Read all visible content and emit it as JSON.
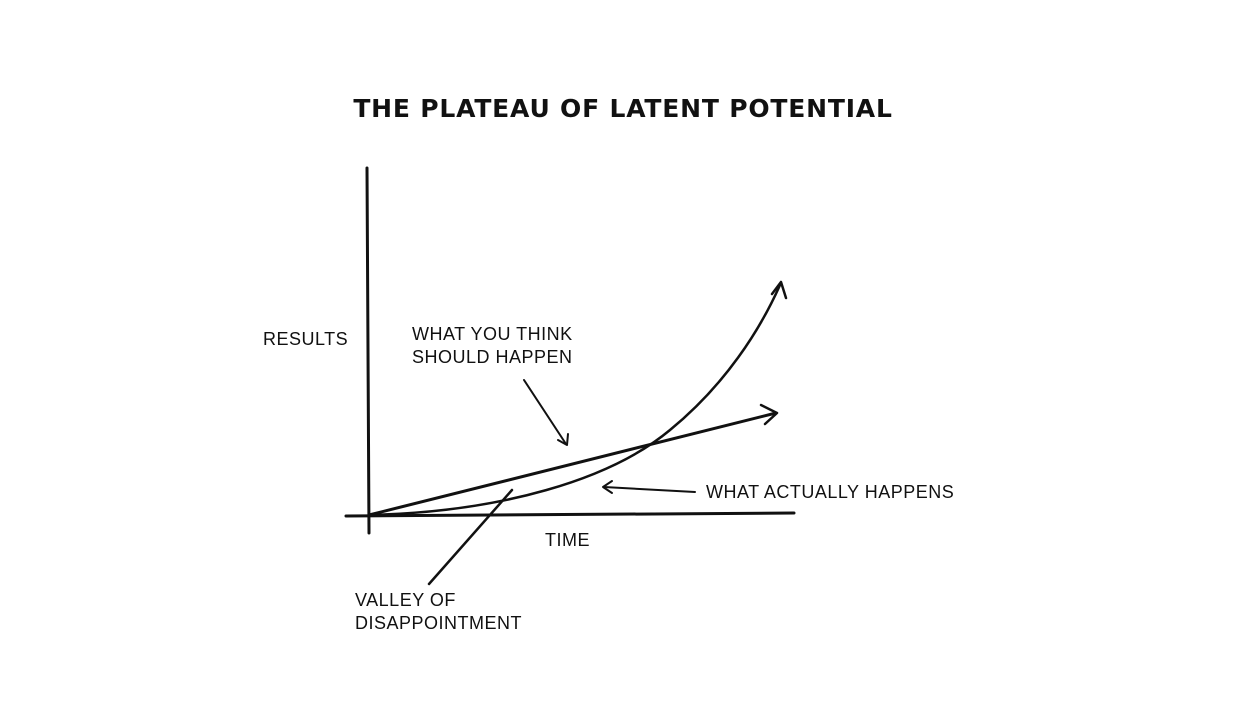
{
  "title": "THE PLATEAU OF LATENT POTENTIAL",
  "axes": {
    "y_label": "RESULTS",
    "x_label": "TIME"
  },
  "annotations": {
    "expected": [
      "WHAT YOU THINK",
      "SHOULD HAPPEN"
    ],
    "actual": "WHAT ACTUALLY HAPPENS",
    "valley": [
      "VALLEY OF",
      "DISAPPOINTMENT"
    ]
  },
  "colors": {
    "ink": "#111111",
    "background": "#ffffff"
  }
}
